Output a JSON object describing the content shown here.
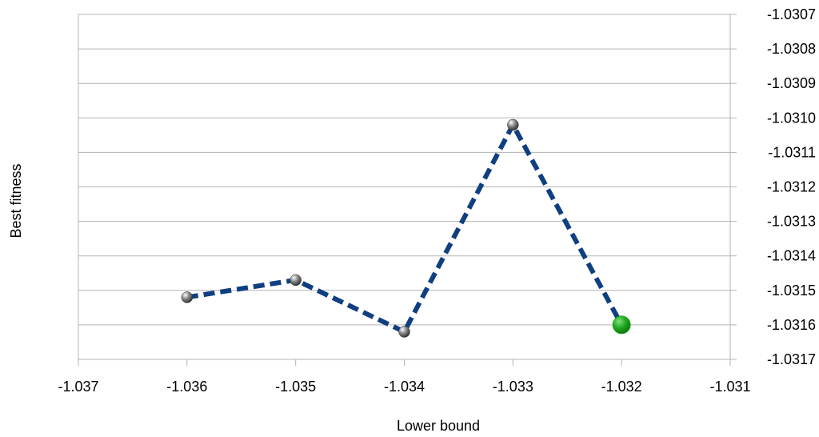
{
  "chart_data": {
    "type": "line",
    "title": "",
    "xlabel": "Lower bound",
    "ylabel": "Best fitness",
    "xlim": [
      -1.037,
      -1.031
    ],
    "ylim": [
      -1.0317,
      -1.0307
    ],
    "x_ticks": [
      "-1.037",
      "-1.036",
      "-1.035",
      "-1.034",
      "-1.033",
      "-1.032",
      "-1.031"
    ],
    "y_ticks": [
      "-1.0307",
      "-1.0308",
      "-1.0309",
      "-1.0310",
      "-1.0311",
      "-1.0312",
      "-1.0313",
      "-1.0314",
      "-1.0315",
      "-1.0316",
      "-1.0317"
    ],
    "grid": "horizontal",
    "y_axis_side": "right",
    "series": [
      {
        "x": [
          -1.036,
          -1.035,
          -1.034,
          -1.033,
          -1.032
        ],
        "y": [
          -1.03152,
          -1.03147,
          -1.03162,
          -1.03102,
          -1.0316
        ],
        "line_color": "#0f3f80",
        "line_style": "dashed",
        "marker_color": "#6e6e6e",
        "highlight_index": 4,
        "highlight_color": "#1faa1f"
      }
    ]
  }
}
